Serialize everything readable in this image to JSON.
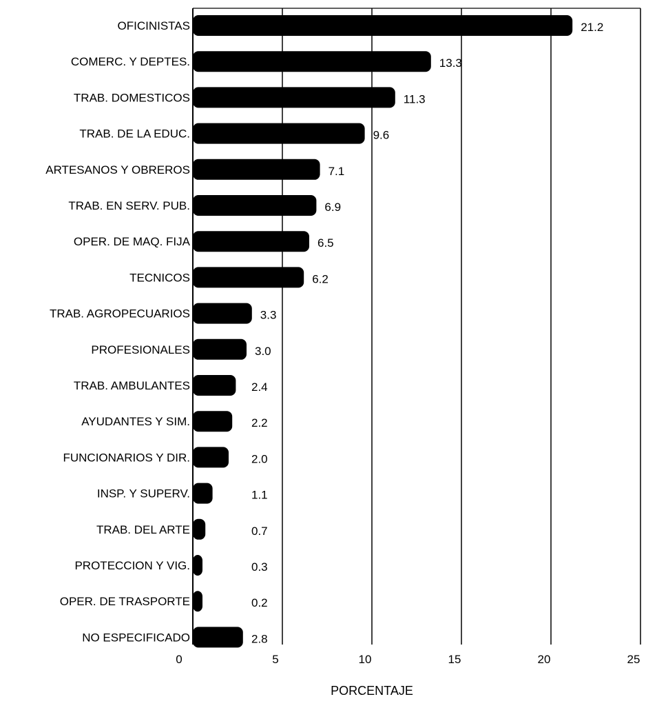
{
  "chart_data": {
    "type": "bar",
    "orientation": "horizontal",
    "title": "",
    "xlabel": "PORCENTAJE",
    "ylabel": "",
    "xlim": [
      0,
      25
    ],
    "xticks": [
      "0",
      "5",
      "10",
      "15",
      "20",
      "25"
    ],
    "grid": "vertical",
    "categories": [
      "OFICINISTAS",
      "COMERC. Y DEPTES.",
      "TRAB. DOMESTICOS",
      "TRAB. DE LA EDUC.",
      "ARTESANOS Y OBREROS",
      "TRAB. EN SERV. PUB.",
      "OPER. DE MAQ. FIJA",
      "TECNICOS",
      "TRAB. AGROPECUARIOS",
      "PROFESIONALES",
      "TRAB. AMBULANTES",
      "AYUDANTES Y SIM.",
      "FUNCIONARIOS Y DIR.",
      "INSP. Y SUPERV.",
      "TRAB. DEL ARTE",
      "PROTECCION Y VIG.",
      "OPER. DE TRASPORTE",
      "NO ESPECIFICADO"
    ],
    "values": [
      21.2,
      13.3,
      11.3,
      9.6,
      7.1,
      6.9,
      6.5,
      6.2,
      3.3,
      3.0,
      2.4,
      2.2,
      2.0,
      1.1,
      0.7,
      0.3,
      0.2,
      2.8
    ],
    "value_labels": [
      "21.2",
      "13.3",
      "11.3",
      "9.6",
      "7.1",
      "6.9",
      "6.5",
      "6.2",
      "3.3",
      "3.0",
      "2.4",
      "2.2",
      "2.0",
      "1.1",
      "0.7",
      "0.3",
      "0.2",
      "2.8"
    ],
    "bar_color": "#000000"
  }
}
